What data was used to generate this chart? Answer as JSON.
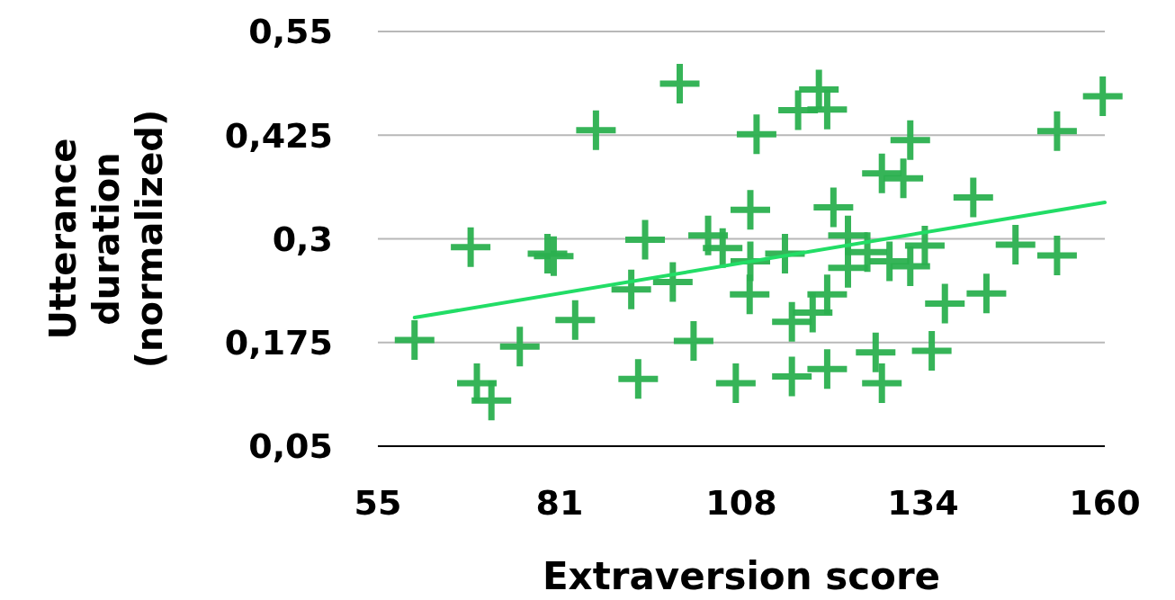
{
  "chart_data": {
    "type": "scatter",
    "xlabel": "Extraversion score",
    "ylabel": "Utterance duration (normalized)",
    "xlim": [
      55,
      160
    ],
    "xticks": [
      55,
      {
        "value": 81.25,
        "label": "81"
      },
      {
        "value": 107.5,
        "label": "108"
      },
      {
        "value": 133.75,
        "label": "134"
      },
      160
    ],
    "ylim": [
      0.05,
      0.55
    ],
    "yticks": [
      {
        "value": 0.05,
        "label": "0,05"
      },
      {
        "value": 0.175,
        "label": "0,175"
      },
      {
        "value": 0.3,
        "label": "0,3"
      },
      {
        "value": 0.425,
        "label": "0,425"
      },
      {
        "value": 0.55,
        "label": "0,55"
      }
    ],
    "grid": "y",
    "marker": "cross",
    "series": [
      {
        "color": "#2bb04f",
        "x": [
          60.3,
          68.4,
          69.3,
          71.4,
          75.5,
          79.5,
          80.4,
          83.5,
          86.5,
          92.6,
          91.6,
          93.6,
          97.6,
          98.6,
          100.6,
          102.7,
          104.8,
          106.7,
          108.8,
          109.7,
          108.8,
          108.7,
          113.8,
          115.7,
          118.7,
          119.9,
          120.8,
          122.9,
          125.7,
          122.9,
          119.9,
          117.8,
          114.8,
          128.9,
          131.9,
          134.0,
          127.8,
          130.9,
          131.9,
          141.0,
          147.1,
          153.1,
          153.1,
          159.7,
          136.9,
          142.9,
          114.8,
          119.9,
          126.9,
          127.8,
          135.0
        ],
        "values": [
          0.178,
          0.29,
          0.126,
          0.105,
          0.17,
          0.282,
          0.279,
          0.202,
          0.431,
          0.131,
          0.239,
          0.299,
          0.248,
          0.487,
          0.177,
          0.304,
          0.289,
          0.126,
          0.273,
          0.426,
          0.335,
          0.233,
          0.282,
          0.455,
          0.48,
          0.456,
          0.338,
          0.304,
          0.284,
          0.265,
          0.233,
          0.211,
          0.2,
          0.273,
          0.267,
          0.292,
          0.379,
          0.373,
          0.419,
          0.35,
          0.293,
          0.28,
          0.43,
          0.472,
          0.222,
          0.234,
          0.134,
          0.143,
          0.163,
          0.126,
          0.165
        ]
      },
      {
        "type": "line",
        "marker": "none",
        "color": "#22dd66",
        "x": [
          60.3,
          160
        ],
        "values": [
          0.205,
          0.344
        ]
      }
    ]
  }
}
